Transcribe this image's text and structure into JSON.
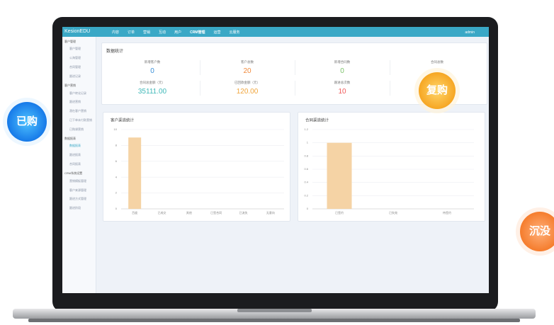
{
  "badges": [
    "已购",
    "复购",
    "沉没"
  ],
  "app": {
    "brand": "KesionEDU",
    "nav": [
      "内容",
      "订单",
      "营销",
      "互动",
      "用户",
      "CRM管理",
      "运营",
      "云服务"
    ],
    "user": "admin",
    "sidebar": [
      {
        "title": "客户管理",
        "items": [
          "客户管理",
          "公海管理",
          "合同管理",
          "跟进记录"
        ]
      },
      {
        "title": "客户营销",
        "items": [
          "客户转化记录",
          "跟进营销",
          "潜在客户营销",
          "已下单未付款营销",
          "已购课营销"
        ]
      },
      {
        "title": "数据报表",
        "items": [
          "数据报表",
          "跟进报表",
          "合同报表"
        ]
      },
      {
        "title": "CRM系统设置",
        "items": [
          "营销模板管理",
          "客户来源管理",
          "跟进方式管理",
          "跟进阶段"
        ]
      }
    ],
    "stats": {
      "title": "数据统计",
      "rows": [
        [
          {
            "label": "新增客户数",
            "value": "0"
          },
          {
            "label": "客户总数",
            "value": "20"
          },
          {
            "label": "新增合同数",
            "value": "0"
          },
          {
            "label": "合同总数"
          }
        ],
        [
          {
            "label": "合同总金额（元）",
            "value": "35111.00"
          },
          {
            "label": "已回款金额（元）",
            "value": "120.00"
          },
          {
            "label": "跟进总次数",
            "value": "10"
          }
        ]
      ]
    },
    "charts": [
      {
        "type": "bar",
        "title": "客户渠道统计",
        "color": "#f5d3a5",
        "categories": [
          "百度",
          "已成交",
          "其他",
          "已签合同",
          "已流失",
          "无意向"
        ],
        "values": [
          9,
          0,
          0,
          0,
          0,
          0
        ],
        "ylim": [
          0,
          10
        ],
        "yticks": [
          0,
          2,
          4,
          6,
          8,
          10
        ],
        "grid": true
      },
      {
        "type": "bar",
        "title": "合同渠道统计",
        "color": "#f5d3a5",
        "categories": [
          "已签约",
          "已失效",
          "待签约"
        ],
        "values": [
          1,
          0,
          0
        ],
        "ylim": [
          0,
          1.2
        ],
        "yticks": [
          0,
          0.2,
          0.4,
          0.6,
          0.8,
          1,
          1.2
        ],
        "grid": true
      }
    ]
  }
}
